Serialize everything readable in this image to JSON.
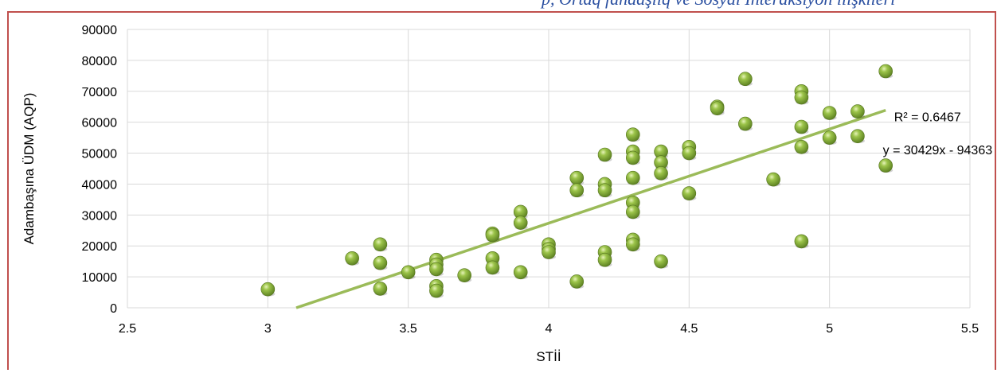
{
  "top_strip_text": "p, Ortaq fandaşlıq ve Sosyal İnteraksiyon ilişkileri",
  "chart_data": {
    "type": "scatter",
    "title": "",
    "xlabel": "STİİ",
    "ylabel": "Adambaşına ÜDM (AQP)",
    "xlim": [
      2.5,
      5.5
    ],
    "ylim": [
      0,
      90000
    ],
    "x_ticks": [
      "2.5",
      "3",
      "3.5",
      "4",
      "4.5",
      "5",
      "5.5"
    ],
    "y_ticks": [
      "0",
      "10000",
      "20000",
      "30000",
      "40000",
      "50000",
      "60000",
      "70000",
      "80000",
      "90000"
    ],
    "grid": true,
    "marker_color": "#8fb83a",
    "trendline_color": "#9bbb59",
    "points": [
      [
        3.0,
        6000
      ],
      [
        3.3,
        16000
      ],
      [
        3.4,
        20500
      ],
      [
        3.4,
        14500
      ],
      [
        3.4,
        6200
      ],
      [
        3.5,
        11500
      ],
      [
        3.6,
        15500
      ],
      [
        3.6,
        14000
      ],
      [
        3.6,
        12500
      ],
      [
        3.6,
        7000
      ],
      [
        3.6,
        5500
      ],
      [
        3.7,
        10500
      ],
      [
        3.8,
        24000
      ],
      [
        3.8,
        23500
      ],
      [
        3.8,
        16000
      ],
      [
        3.8,
        13000
      ],
      [
        3.9,
        31000
      ],
      [
        3.9,
        27500
      ],
      [
        3.9,
        11500
      ],
      [
        4.0,
        20500
      ],
      [
        4.0,
        19000
      ],
      [
        4.0,
        18000
      ],
      [
        4.1,
        42000
      ],
      [
        4.1,
        38000
      ],
      [
        4.1,
        8500
      ],
      [
        4.2,
        49500
      ],
      [
        4.2,
        40000
      ],
      [
        4.2,
        38000
      ],
      [
        4.2,
        18000
      ],
      [
        4.2,
        15500
      ],
      [
        4.3,
        56000
      ],
      [
        4.3,
        50500
      ],
      [
        4.3,
        48500
      ],
      [
        4.3,
        42000
      ],
      [
        4.3,
        34000
      ],
      [
        4.3,
        31000
      ],
      [
        4.3,
        22000
      ],
      [
        4.3,
        20500
      ],
      [
        4.4,
        50500
      ],
      [
        4.4,
        47000
      ],
      [
        4.4,
        43500
      ],
      [
        4.4,
        15000
      ],
      [
        4.5,
        52000
      ],
      [
        4.5,
        50000
      ],
      [
        4.5,
        37000
      ],
      [
        4.6,
        65000
      ],
      [
        4.6,
        64500
      ],
      [
        4.7,
        74000
      ],
      [
        4.7,
        59500
      ],
      [
        4.8,
        41500
      ],
      [
        4.9,
        70000
      ],
      [
        4.9,
        68000
      ],
      [
        4.9,
        58500
      ],
      [
        4.9,
        52000
      ],
      [
        4.9,
        21500
      ],
      [
        5.0,
        63000
      ],
      [
        5.0,
        55000
      ],
      [
        5.1,
        63500
      ],
      [
        5.1,
        55500
      ],
      [
        5.2,
        76500
      ],
      [
        5.2,
        46000
      ]
    ],
    "trendline": {
      "type": "linear",
      "slope": 30429,
      "intercept": -94363,
      "x_range": [
        3.1,
        5.2
      ]
    },
    "annotations": {
      "r_squared": "R² = 0.6467",
      "equation": "y = 30429x - 94363"
    }
  }
}
